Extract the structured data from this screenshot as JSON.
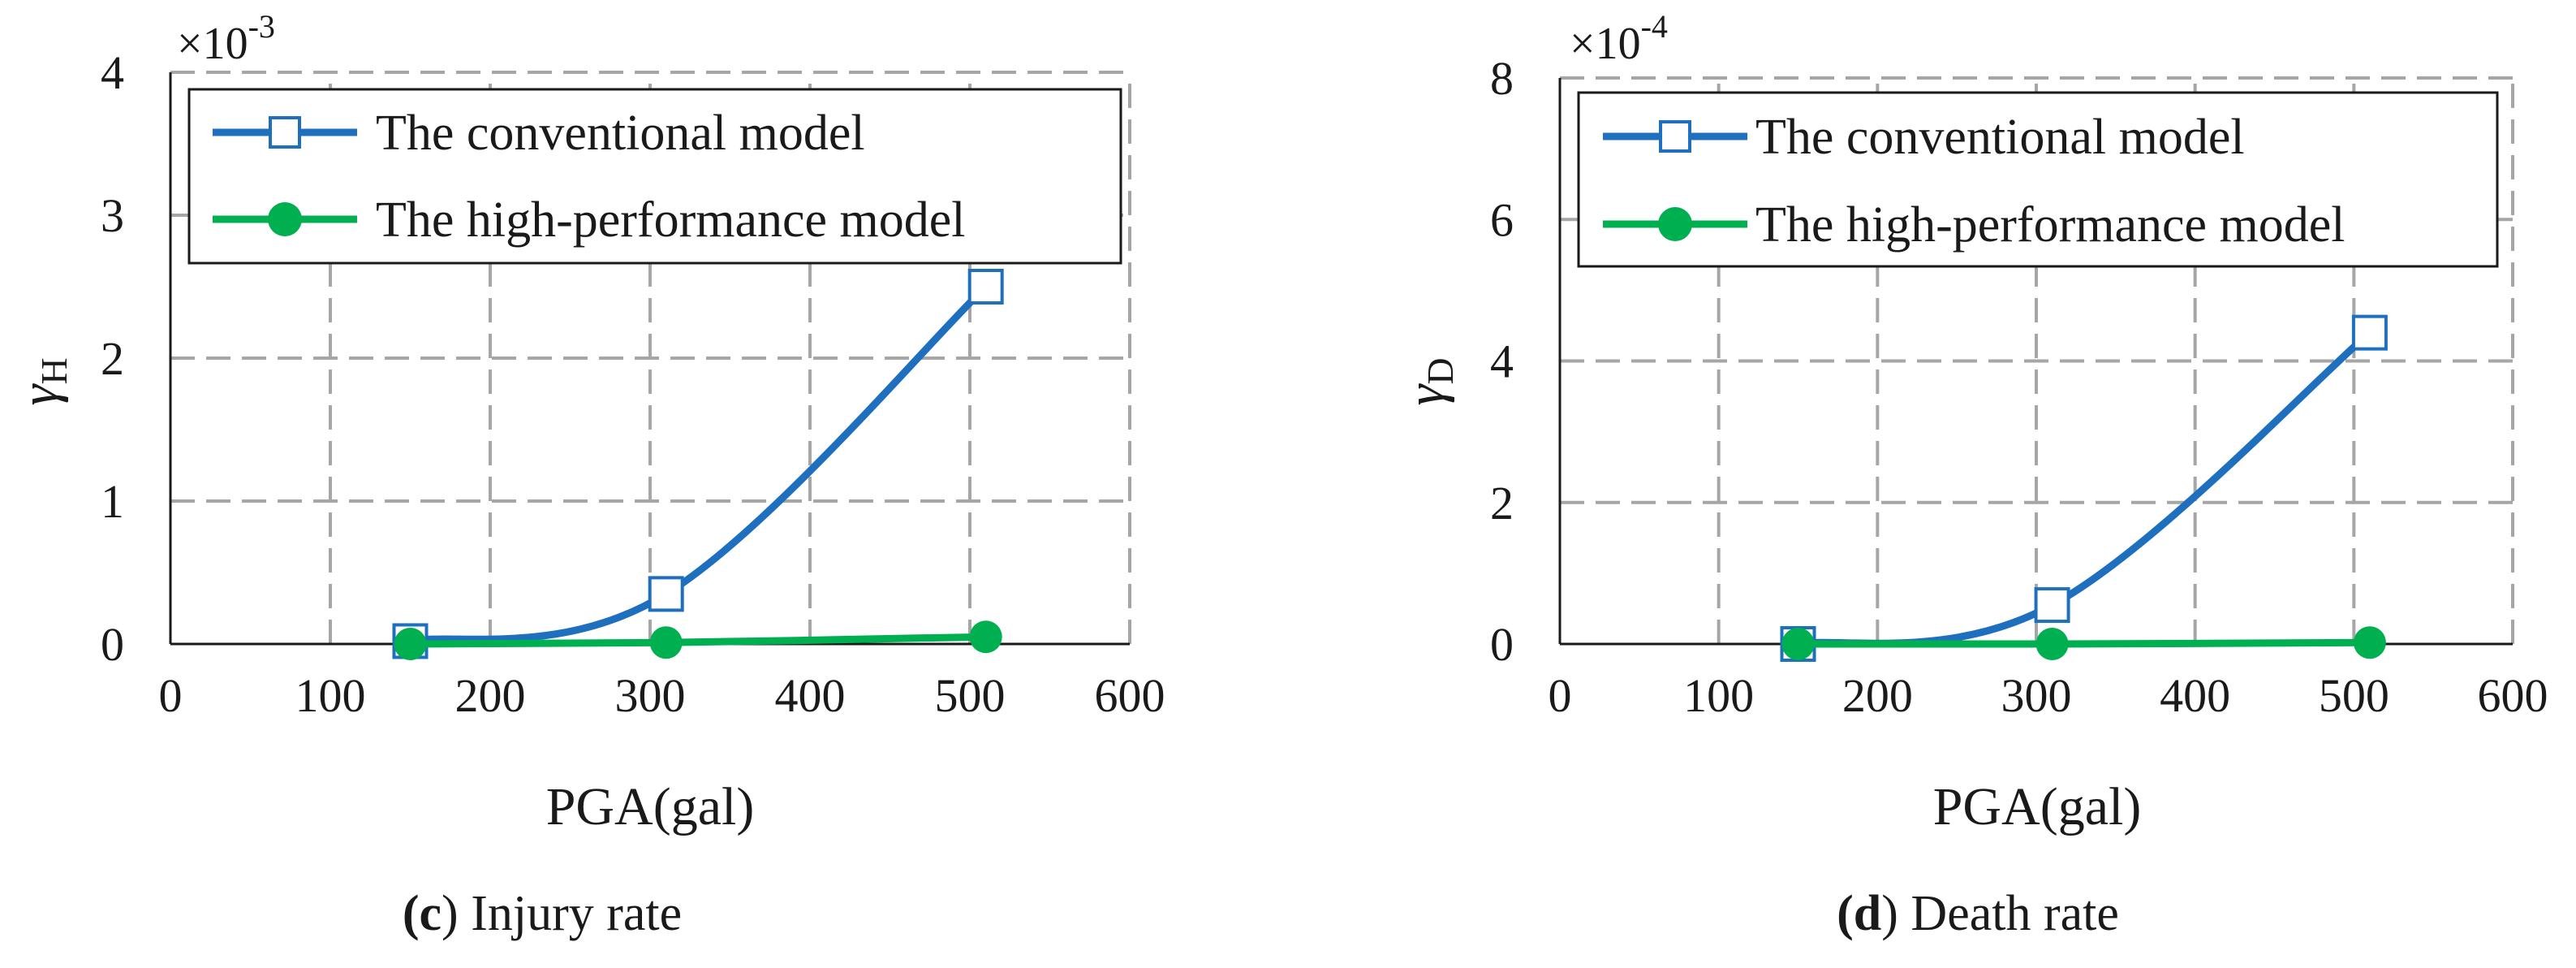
{
  "colors": {
    "conventional": "#1f6fbf",
    "high_performance": "#00b050",
    "grid": "#a6a6a6"
  },
  "chart_data": [
    {
      "type": "line",
      "caption_letter": "c",
      "caption_text": " Injury rate",
      "xlabel": "PGA(gal)",
      "ylabel_main": "γ",
      "ylabel_sub": "H",
      "multiplier": "×10",
      "multiplier_exp": "-3",
      "xlim": [
        0,
        600
      ],
      "ylim": [
        0,
        4
      ],
      "xticks": [
        0,
        100,
        200,
        300,
        400,
        500,
        600
      ],
      "yticks": [
        0,
        1,
        2,
        3,
        4
      ],
      "grid": true,
      "legend_position": "top-left",
      "series": [
        {
          "name": "The conventional model",
          "marker": "open-square",
          "x": [
            150,
            310,
            510
          ],
          "y": [
            0.02,
            0.35,
            2.5
          ]
        },
        {
          "name": "The high-performance model",
          "marker": "filled-circle",
          "x": [
            150,
            310,
            510
          ],
          "y": [
            0.0,
            0.01,
            0.05
          ]
        }
      ]
    },
    {
      "type": "line",
      "caption_letter": "d",
      "caption_text": " Death rate",
      "xlabel": "PGA(gal)",
      "ylabel_main": "γ",
      "ylabel_sub": "D",
      "multiplier": "×10",
      "multiplier_exp": "-4",
      "xlim": [
        0,
        600
      ],
      "ylim": [
        0,
        8
      ],
      "xticks": [
        0,
        100,
        200,
        300,
        400,
        500,
        600
      ],
      "yticks": [
        0,
        2,
        4,
        6,
        8
      ],
      "grid": true,
      "legend_position": "top-left",
      "series": [
        {
          "name": "The conventional model",
          "marker": "open-square",
          "x": [
            150,
            310,
            510
          ],
          "y": [
            0.0,
            0.55,
            4.4
          ]
        },
        {
          "name": "The high-performance model",
          "marker": "filled-circle",
          "x": [
            150,
            310,
            510
          ],
          "y": [
            0.0,
            0.0,
            0.02
          ]
        }
      ]
    }
  ]
}
